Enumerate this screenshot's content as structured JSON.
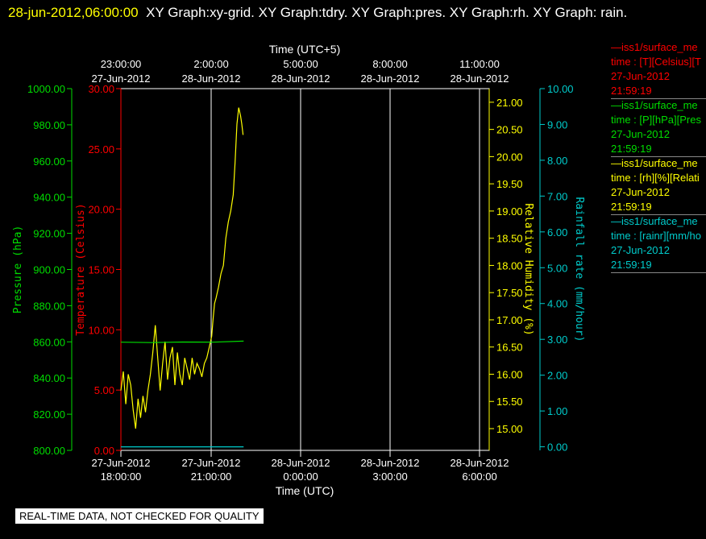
{
  "header": {
    "timestamp": "28-jun-2012,06:00:00",
    "title_text": "XY Graph:xy-grid.  XY Graph:tdry.  XY Graph:pres.  XY Graph:rh.  XY Graph: rain."
  },
  "footer": {
    "qc_notice": "REAL-TIME DATA, NOT CHECKED FOR QUALITY"
  },
  "legend": [
    {
      "name": "—iss1/surface_me",
      "line2": "time : [T][Celsius][T",
      "line3": "27-Jun-2012",
      "line4": "21:59:19",
      "color": "#ff0000"
    },
    {
      "name": "—iss1/surface_me",
      "line2": "time : [P][hPa][Pres",
      "line3": "27-Jun-2012",
      "line4": "21:59:19",
      "color": "#00dd00"
    },
    {
      "name": "—iss1/surface_me",
      "line2": "time : [rh][%][Relati",
      "line3": "27-Jun-2012",
      "line4": "21:59:19",
      "color": "#ffff00"
    },
    {
      "name": "—iss1/surface_me",
      "line2": "time : [rainr][mm/ho",
      "line3": "27-Jun-2012",
      "line4": "21:59:19",
      "color": "#00cccc"
    }
  ],
  "chart_data": {
    "type": "line",
    "x_axis_bottom": {
      "label": "Time (UTC)",
      "ticks": [
        {
          "l1": "27-Jun-2012",
          "l2": "18:00:00"
        },
        {
          "l1": "27-Jun-2012",
          "l2": "21:00:00"
        },
        {
          "l1": "28-Jun-2012",
          "l2": "0:00:00"
        },
        {
          "l1": "28-Jun-2012",
          "l2": "3:00:00"
        },
        {
          "l1": "28-Jun-2012",
          "l2": "6:00:00"
        }
      ],
      "range_hours": [
        0,
        12
      ]
    },
    "x_axis_top": {
      "label": "Time (UTC+5)",
      "ticks": [
        {
          "l1": "23:00:00",
          "l2": "27-Jun-2012"
        },
        {
          "l1": "2:00:00",
          "l2": "28-Jun-2012"
        },
        {
          "l1": "5:00:00",
          "l2": "28-Jun-2012"
        },
        {
          "l1": "8:00:00",
          "l2": "28-Jun-2012"
        },
        {
          "l1": "11:00:00",
          "l2": "28-Jun-2012"
        }
      ]
    },
    "pressure_axis": {
      "label": "Pressure (hPa)",
      "color": "#00dd00",
      "range": [
        800,
        1000
      ],
      "ticks": [
        "800.00",
        "820.00",
        "840.00",
        "860.00",
        "880.00",
        "900.00",
        "920.00",
        "940.00",
        "960.00",
        "980.00",
        "1000.00"
      ]
    },
    "temperature_axis": {
      "label": "Temperature (Celsius)",
      "color": "#ff0000",
      "range": [
        0,
        30
      ],
      "ticks": [
        "0.00",
        "5.00",
        "10.00",
        "15.00",
        "20.00",
        "25.00",
        "30.00"
      ]
    },
    "rh_axis": {
      "label": "Relative Humidity (%)",
      "color": "#ffff00",
      "range": [
        14.6,
        21.25
      ],
      "ticks": [
        "15.00",
        "15.50",
        "16.00",
        "16.50",
        "17.00",
        "17.50",
        "18.00",
        "18.50",
        "19.00",
        "19.50",
        "20.00",
        "20.50",
        "21.00"
      ]
    },
    "rain_axis": {
      "label": "Rainfall rate (mm/hour)",
      "color": "#00cccc",
      "range": [
        -0.1,
        10
      ],
      "ticks": [
        "0.00",
        "1.00",
        "2.00",
        "3.00",
        "4.00",
        "5.00",
        "6.00",
        "7.00",
        "8.00",
        "9.00",
        "10.00"
      ]
    },
    "series": [
      {
        "name": "rh",
        "color": "#ffff00",
        "axis": "rh_axis",
        "x": [
          0.0,
          0.08,
          0.16,
          0.24,
          0.32,
          0.4,
          0.48,
          0.56,
          0.64,
          0.72,
          0.8,
          0.88,
          0.96,
          1.04,
          1.12,
          1.2,
          1.28,
          1.36,
          1.44,
          1.52,
          1.6,
          1.68,
          1.76,
          1.84,
          1.92,
          2.0,
          2.08,
          2.16,
          2.24,
          2.32,
          2.4,
          2.48,
          2.56,
          2.64,
          2.72,
          2.8,
          2.88,
          2.96,
          3.0,
          3.05,
          3.1,
          3.18,
          3.26,
          3.34,
          3.42,
          3.5,
          3.58,
          3.66,
          3.72,
          3.78,
          3.84,
          3.9,
          3.94,
          3.98
        ],
        "y": [
          15.7,
          16.05,
          15.45,
          16.0,
          15.8,
          15.35,
          15.0,
          15.55,
          15.2,
          15.6,
          15.3,
          15.7,
          16.0,
          16.4,
          16.9,
          16.3,
          15.7,
          16.2,
          16.6,
          15.9,
          16.3,
          16.5,
          15.8,
          16.4,
          16.0,
          15.8,
          16.3,
          16.1,
          15.9,
          16.3,
          16.0,
          16.2,
          16.1,
          15.95,
          16.2,
          16.3,
          16.5,
          16.7,
          17.0,
          17.3,
          17.4,
          17.6,
          17.85,
          18.0,
          18.5,
          18.8,
          19.0,
          19.3,
          19.9,
          20.6,
          20.9,
          20.75,
          20.6,
          20.4
        ]
      },
      {
        "name": "pressure",
        "color": "#00dd00",
        "axis": "pressure_axis",
        "x": [
          0.0,
          1.0,
          2.0,
          3.0,
          4.0
        ],
        "y": [
          859.8,
          859.6,
          859.9,
          859.8,
          860.4
        ]
      },
      {
        "name": "rain",
        "color": "#00cccc",
        "axis": "rain_axis",
        "x": [
          0.0,
          4.0
        ],
        "y": [
          0.0,
          0.0
        ]
      }
    ]
  }
}
